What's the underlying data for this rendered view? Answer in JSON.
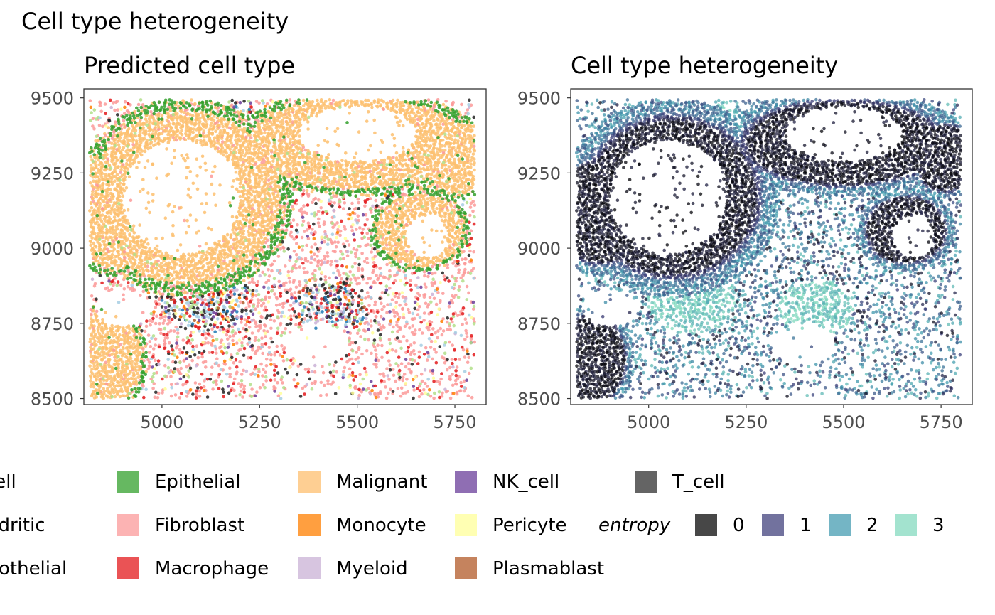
{
  "title": "Cell type heterogeneity",
  "chart_data": [
    {
      "type": "scatter",
      "title": "Predicted cell type",
      "xlabel": "",
      "ylabel": "",
      "xlim": [
        4800,
        5830
      ],
      "ylim": [
        8480,
        9530
      ],
      "xticks": [
        5000,
        5250,
        5500,
        5750
      ],
      "yticks": [
        8500,
        8750,
        9000,
        9250,
        9500
      ],
      "color_by": "predicted cell type",
      "categories": [
        {
          "name": "B_cell",
          "label": "_cell",
          "color": "#a6cee3"
        },
        {
          "name": "Dendritic",
          "label": "endritic",
          "color": "#b2df8a"
        },
        {
          "name": "Endothelial",
          "label": "ndothelial",
          "color": "#1f78b4"
        },
        {
          "name": "Epithelial",
          "label": "Epithelial",
          "color": "#33a02c"
        },
        {
          "name": "Fibroblast",
          "label": "Fibroblast",
          "color": "#fb9a99"
        },
        {
          "name": "Macrophage",
          "label": "Macrophage",
          "color": "#e31a1c"
        },
        {
          "name": "Malignant",
          "label": "Malignant",
          "color": "#fdbf6f"
        },
        {
          "name": "Monocyte",
          "label": "Monocyte",
          "color": "#ff7f00"
        },
        {
          "name": "Myeloid",
          "label": "Myeloid",
          "color": "#cab2d6"
        },
        {
          "name": "NK_cell",
          "label": "NK_cell",
          "color": "#6a3d9a"
        },
        {
          "name": "Pericyte",
          "label": "Pericyte",
          "color": "#ffff99"
        },
        {
          "name": "Plasmablast",
          "label": "Plasmablast",
          "color": "#b15928"
        },
        {
          "name": "T_cell",
          "label": "T_cell",
          "color": "#222222"
        }
      ]
    },
    {
      "type": "scatter",
      "title": "Cell type heterogeneity",
      "xlabel": "",
      "ylabel": "",
      "xlim": [
        4800,
        5830
      ],
      "ylim": [
        8480,
        9530
      ],
      "xticks": [
        5000,
        5250,
        5500,
        5750
      ],
      "yticks": [
        8500,
        8750,
        9000,
        9250,
        9500
      ],
      "color_by": "entropy",
      "legend_title": "entropy",
      "legend_breaks": [
        0,
        1,
        2,
        3
      ],
      "palette": [
        "#000000",
        "#3b3c78",
        "#3f98ae",
        "#7fd8bd"
      ]
    }
  ]
}
